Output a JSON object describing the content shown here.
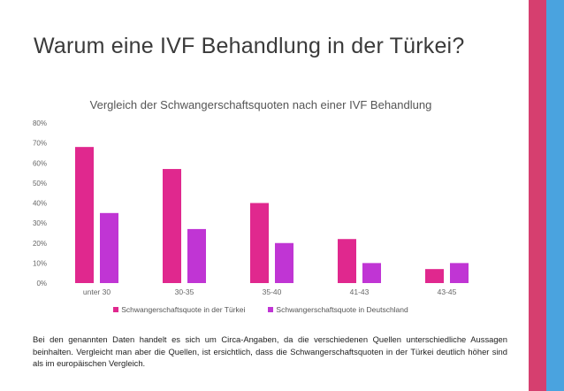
{
  "slide": {
    "title": "Warum eine IVF Behandlung in der Türkei?",
    "note": "Bei den genannten Daten handelt es sich um Circa-Angaben, da die verschiedenen Quellen unterschiedliche Aussagen beinhalten. Vergleicht man aber die Quellen, ist ersichtlich, dass die Schwangerschaftsquoten in der Türkei deutlich höher sind als im europäischen Vergleich.",
    "colors": {
      "stripe_pink": "#d63f6f",
      "stripe_blue": "#4aa3df"
    }
  },
  "chart_data": {
    "type": "bar",
    "title": "Vergleich der Schwangerschaftsquoten nach einer IVF Behandlung",
    "categories": [
      "unter 30",
      "30-35",
      "35-40",
      "41-43",
      "43-45"
    ],
    "series": [
      {
        "name": "Schwangerschaftsquote in der Türkei",
        "color": "#e0288e",
        "values": [
          68,
          57,
          40,
          22,
          7
        ]
      },
      {
        "name": "Schwangerschaftsquote in Deutschland",
        "color": "#c035d4",
        "values": [
          35,
          27,
          20,
          10,
          10
        ]
      }
    ],
    "ylim": [
      0,
      80
    ],
    "yticks": [
      "0%",
      "10%",
      "20%",
      "30%",
      "40%",
      "50%",
      "60%",
      "70%",
      "80%"
    ],
    "grid": false,
    "legend": "bottom"
  }
}
